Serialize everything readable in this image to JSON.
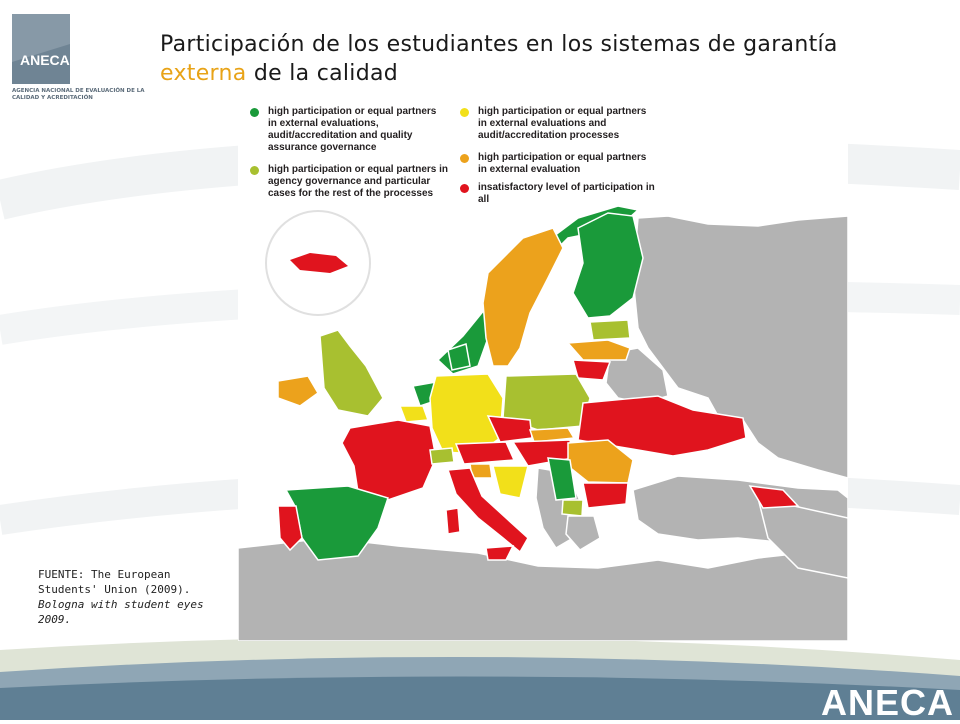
{
  "header": {
    "logo_text": "ANECA",
    "logo_caption": "AGENCIA NACIONAL DE EVALUACIÓN DE LA CALIDAD Y ACREDITACIÓN",
    "title_part1": "Participación de los estudiantes en los sistemas de garantía",
    "title_highlight": "externa",
    "title_part2": "de la calidad"
  },
  "legend": [
    {
      "color": "#1a9a3a",
      "label": "high participation or equal partners in external evaluations, audit/accreditation and quality assurance governance"
    },
    {
      "color": "#a8c030",
      "label": "high participation or equal partners in agency governance and particular cases for the rest of the processes"
    },
    {
      "color": "#f2e01a",
      "label": "high participation or equal partners in external evaluations  and audit/accreditation processes"
    },
    {
      "color": "#eca21c",
      "label": "high participation or equal partners in external evaluation"
    },
    {
      "color": "#e0141e",
      "label": "insatisfactory level of participation in all"
    }
  ],
  "source": {
    "line1": "FUENTE: The European Students' Union (2009).",
    "line2": "Bologna with student eyes 2009."
  },
  "footer": {
    "brand": "ANECA"
  },
  "colors": {
    "accent": "#e8a317",
    "no_data": "#b3b3b3",
    "footer_band": "#5f7f94"
  }
}
